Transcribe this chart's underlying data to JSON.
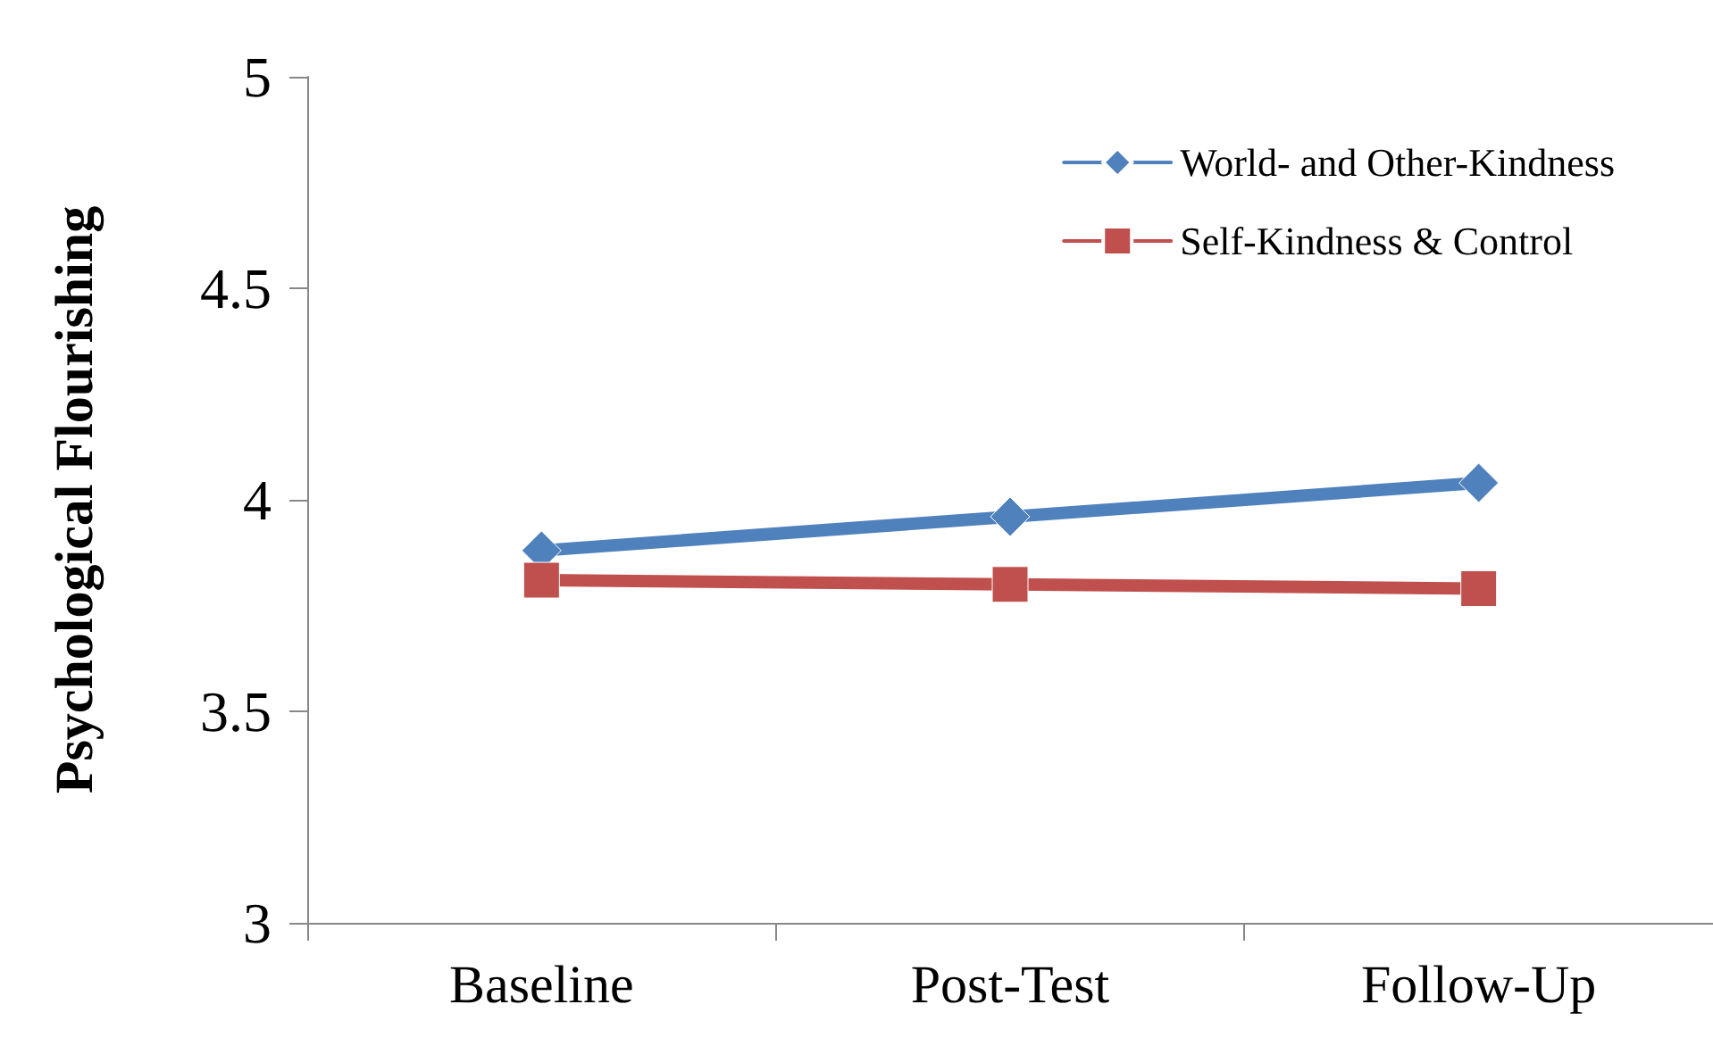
{
  "chart_data": {
    "type": "line",
    "ylabel": "Psychological Flourishing",
    "categories": [
      "Baseline",
      "Post-Test",
      "Follow-Up"
    ],
    "series": [
      {
        "name": "World- and Other-Kindness",
        "color": "#4f81bd",
        "values": [
          3.88,
          3.96,
          4.04
        ],
        "marker": "diamond"
      },
      {
        "name": "Self-Kindness & Control",
        "color": "#c0504d",
        "values": [
          3.81,
          3.8,
          3.79
        ],
        "marker": "square"
      }
    ],
    "ylim": [
      3,
      5
    ],
    "yticks": [
      3,
      3.5,
      4,
      4.5,
      5
    ],
    "grid": false,
    "legend": "top right"
  }
}
